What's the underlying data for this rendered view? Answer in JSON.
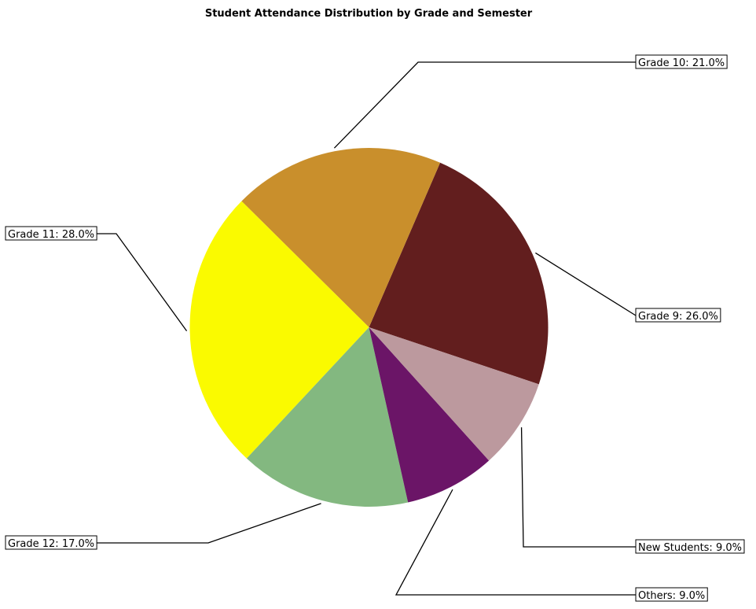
{
  "chart_data": {
    "type": "pie",
    "title": "Student Attendance Distribution by Grade and Semester",
    "slices": [
      {
        "label": "Grade 9",
        "value": 26.0,
        "display": "Grade 9: 26.0%",
        "color": "#621e1e"
      },
      {
        "label": "Grade 10",
        "value": 21.0,
        "display": "Grade 10: 21.0%",
        "color": "#c98f2c"
      },
      {
        "label": "Grade 11",
        "value": 28.0,
        "display": "Grade 11: 28.0%",
        "color": "#fafa00"
      },
      {
        "label": "Grade 12",
        "value": 17.0,
        "display": "Grade 12: 17.0%",
        "color": "#83b880"
      },
      {
        "label": "Others",
        "value": 9.0,
        "display": "Others: 9.0%",
        "color": "#6b1567"
      },
      {
        "label": "New Students",
        "value": 9.0,
        "display": "New Students: 9.0%",
        "color": "#bc999e"
      }
    ]
  }
}
